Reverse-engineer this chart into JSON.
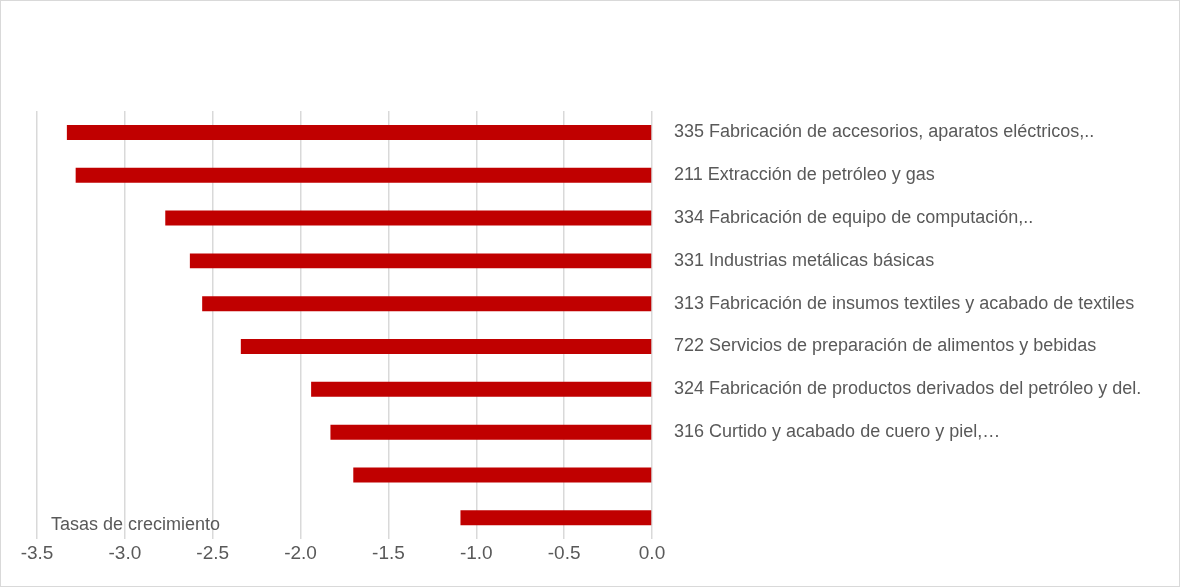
{
  "chart_data": {
    "type": "bar",
    "orientation": "horizontal",
    "categories": [
      "335 Fabricación de accesorios, aparatos eléctricos,..",
      "211 Extracción de petróleo y gas",
      "334 Fabricación de equipo de computación,..",
      "331 Industrias metálicas básicas",
      "313 Fabricación de insumos textiles y acabado de textiles",
      "722 Servicios de preparación de alimentos y bebidas",
      "324 Fabricación de productos derivados del petróleo y del.",
      "316 Curtido y acabado de cuero y piel,…",
      null,
      null
    ],
    "series": [
      {
        "color": "#c00000",
        "values": [
          -3.33,
          -3.28,
          -2.77,
          -2.63,
          -2.56,
          -2.34,
          -1.94,
          -1.83,
          -1.7,
          -1.09
        ]
      }
    ],
    "xlim": [
      -3.5,
      0
    ],
    "xticks": [
      {
        "value": -3.5,
        "label": "-3.5"
      },
      {
        "value": -3,
        "label": "-3.0"
      },
      {
        "value": -2.5,
        "label": "-2.5"
      },
      {
        "value": -2,
        "label": "-2.0"
      },
      {
        "value": -1.5,
        "label": "-1.5"
      },
      {
        "value": -1,
        "label": "-1.0"
      },
      {
        "value": -0.5,
        "label": "-0.5"
      },
      {
        "value": 0,
        "label": "0.0"
      }
    ],
    "grid": "x",
    "legend": false,
    "annotations": [
      "Tasas de crecimiento"
    ]
  }
}
